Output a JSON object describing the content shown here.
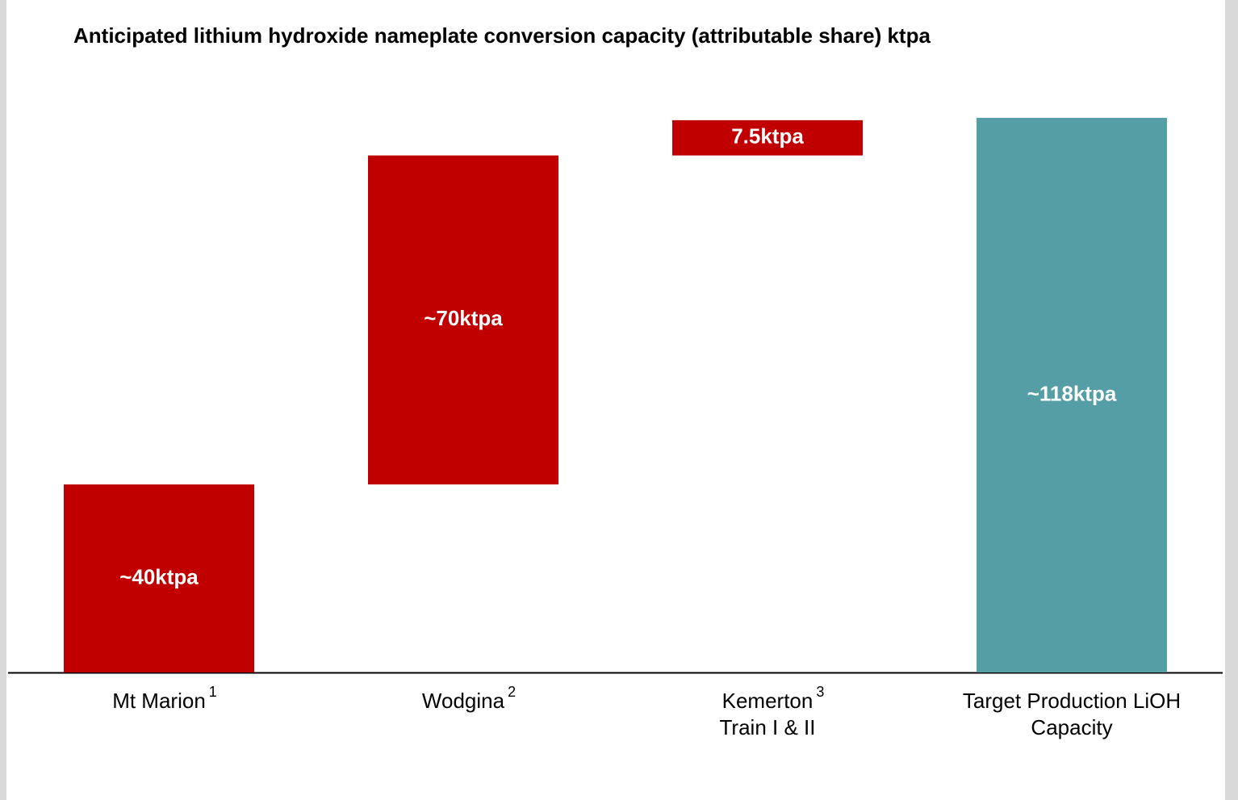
{
  "chart_data": {
    "type": "waterfall",
    "title": "Anticipated lithium hydroxide nameplate conversion capacity (attributable share) ktpa",
    "categories": [
      "Mt Marion",
      "Wodgina",
      "Kemerton Train I & II",
      "Target Production LiOH Capacity"
    ],
    "category_notes": [
      "1",
      "2",
      "3",
      null
    ],
    "values": [
      40,
      70,
      7.5,
      118
    ],
    "value_labels": [
      "~40ktpa",
      "~70ktpa",
      "7.5ktpa",
      "~118ktpa"
    ],
    "is_total": [
      false,
      false,
      false,
      true
    ],
    "colors": [
      "#c00000",
      "#c00000",
      "#c00000",
      "#559ea6"
    ]
  }
}
